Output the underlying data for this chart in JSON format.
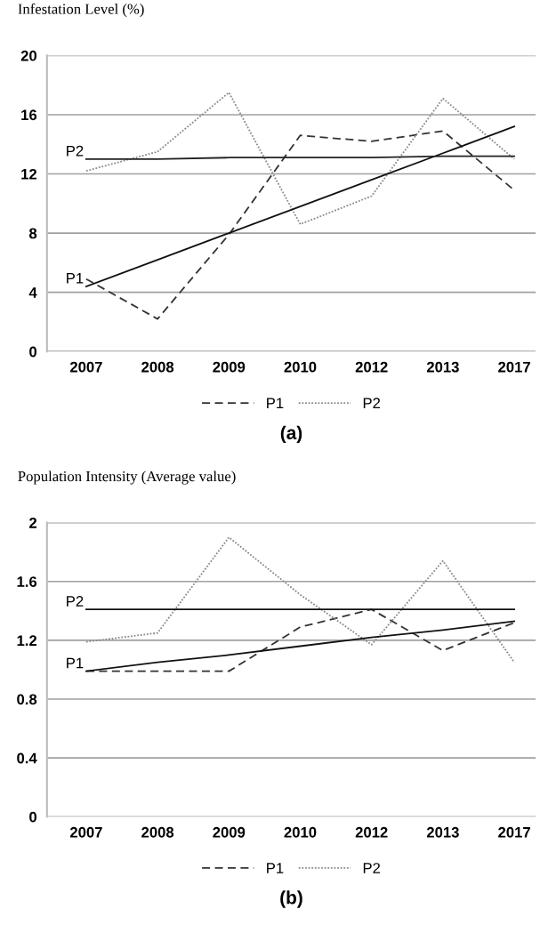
{
  "chart_data": [
    {
      "type": "line",
      "ylabel": "Infestation Level (%)",
      "categories": [
        "2007",
        "2008",
        "2009",
        "2010",
        "2012",
        "2013",
        "2017"
      ],
      "ylim": [
        0,
        20
      ],
      "yticks": [
        0,
        4,
        8,
        12,
        16,
        20
      ],
      "grid": "y",
      "legend": "bottom",
      "series": [
        {
          "name": "P1",
          "color": "#333333",
          "line_style": "dashed",
          "values": [
            4.9,
            2.2,
            7.9,
            14.6,
            14.2,
            14.9,
            10.9
          ]
        },
        {
          "name": "P2",
          "color": "#8a8a8a",
          "line_style": "dotted",
          "values": [
            12.2,
            13.5,
            17.5,
            8.6,
            10.5,
            17.1,
            13.0
          ]
        },
        {
          "color": "#111111",
          "line_style": "solid",
          "values": [
            4.4,
            6.2,
            8.0,
            9.8,
            11.6,
            13.4,
            15.2
          ]
        },
        {
          "color": "#222222",
          "line_style": "solid",
          "values": [
            13.0,
            13.0,
            13.1,
            13.1,
            13.1,
            13.2,
            13.2
          ]
        }
      ],
      "annotations": [
        {
          "text": "P1",
          "x": "2007",
          "y": 4.4
        },
        {
          "text": "P2",
          "x": "2007",
          "y": 13.0
        },
        "(a)"
      ]
    },
    {
      "type": "line",
      "ylabel": "Population Intensity (Average value)",
      "categories": [
        "2007",
        "2008",
        "2009",
        "2010",
        "2012",
        "2013",
        "2017"
      ],
      "ylim": [
        0,
        2
      ],
      "yticks": [
        0,
        0.4,
        0.8,
        1.2,
        1.6,
        2
      ],
      "grid": "y",
      "legend": "bottom",
      "series": [
        {
          "name": "P1",
          "color": "#333333",
          "line_style": "dashed",
          "values": [
            0.99,
            0.99,
            0.99,
            1.29,
            1.41,
            1.13,
            1.32
          ]
        },
        {
          "name": "P2",
          "color": "#8a8a8a",
          "line_style": "dotted",
          "values": [
            1.19,
            1.25,
            1.9,
            1.51,
            1.17,
            1.74,
            1.05
          ]
        },
        {
          "color": "#111111",
          "line_style": "solid",
          "values": [
            0.99,
            1.05,
            1.1,
            1.16,
            1.22,
            1.27,
            1.33
          ]
        },
        {
          "color": "#111111",
          "line_style": "solid",
          "values": [
            1.41,
            1.41,
            1.41,
            1.41,
            1.41,
            1.41,
            1.41
          ]
        }
      ],
      "annotations": [
        {
          "text": "P1",
          "x": "2007",
          "y": 0.99
        },
        {
          "text": "P2",
          "x": "2007",
          "y": 1.41
        },
        "(b)"
      ]
    }
  ]
}
